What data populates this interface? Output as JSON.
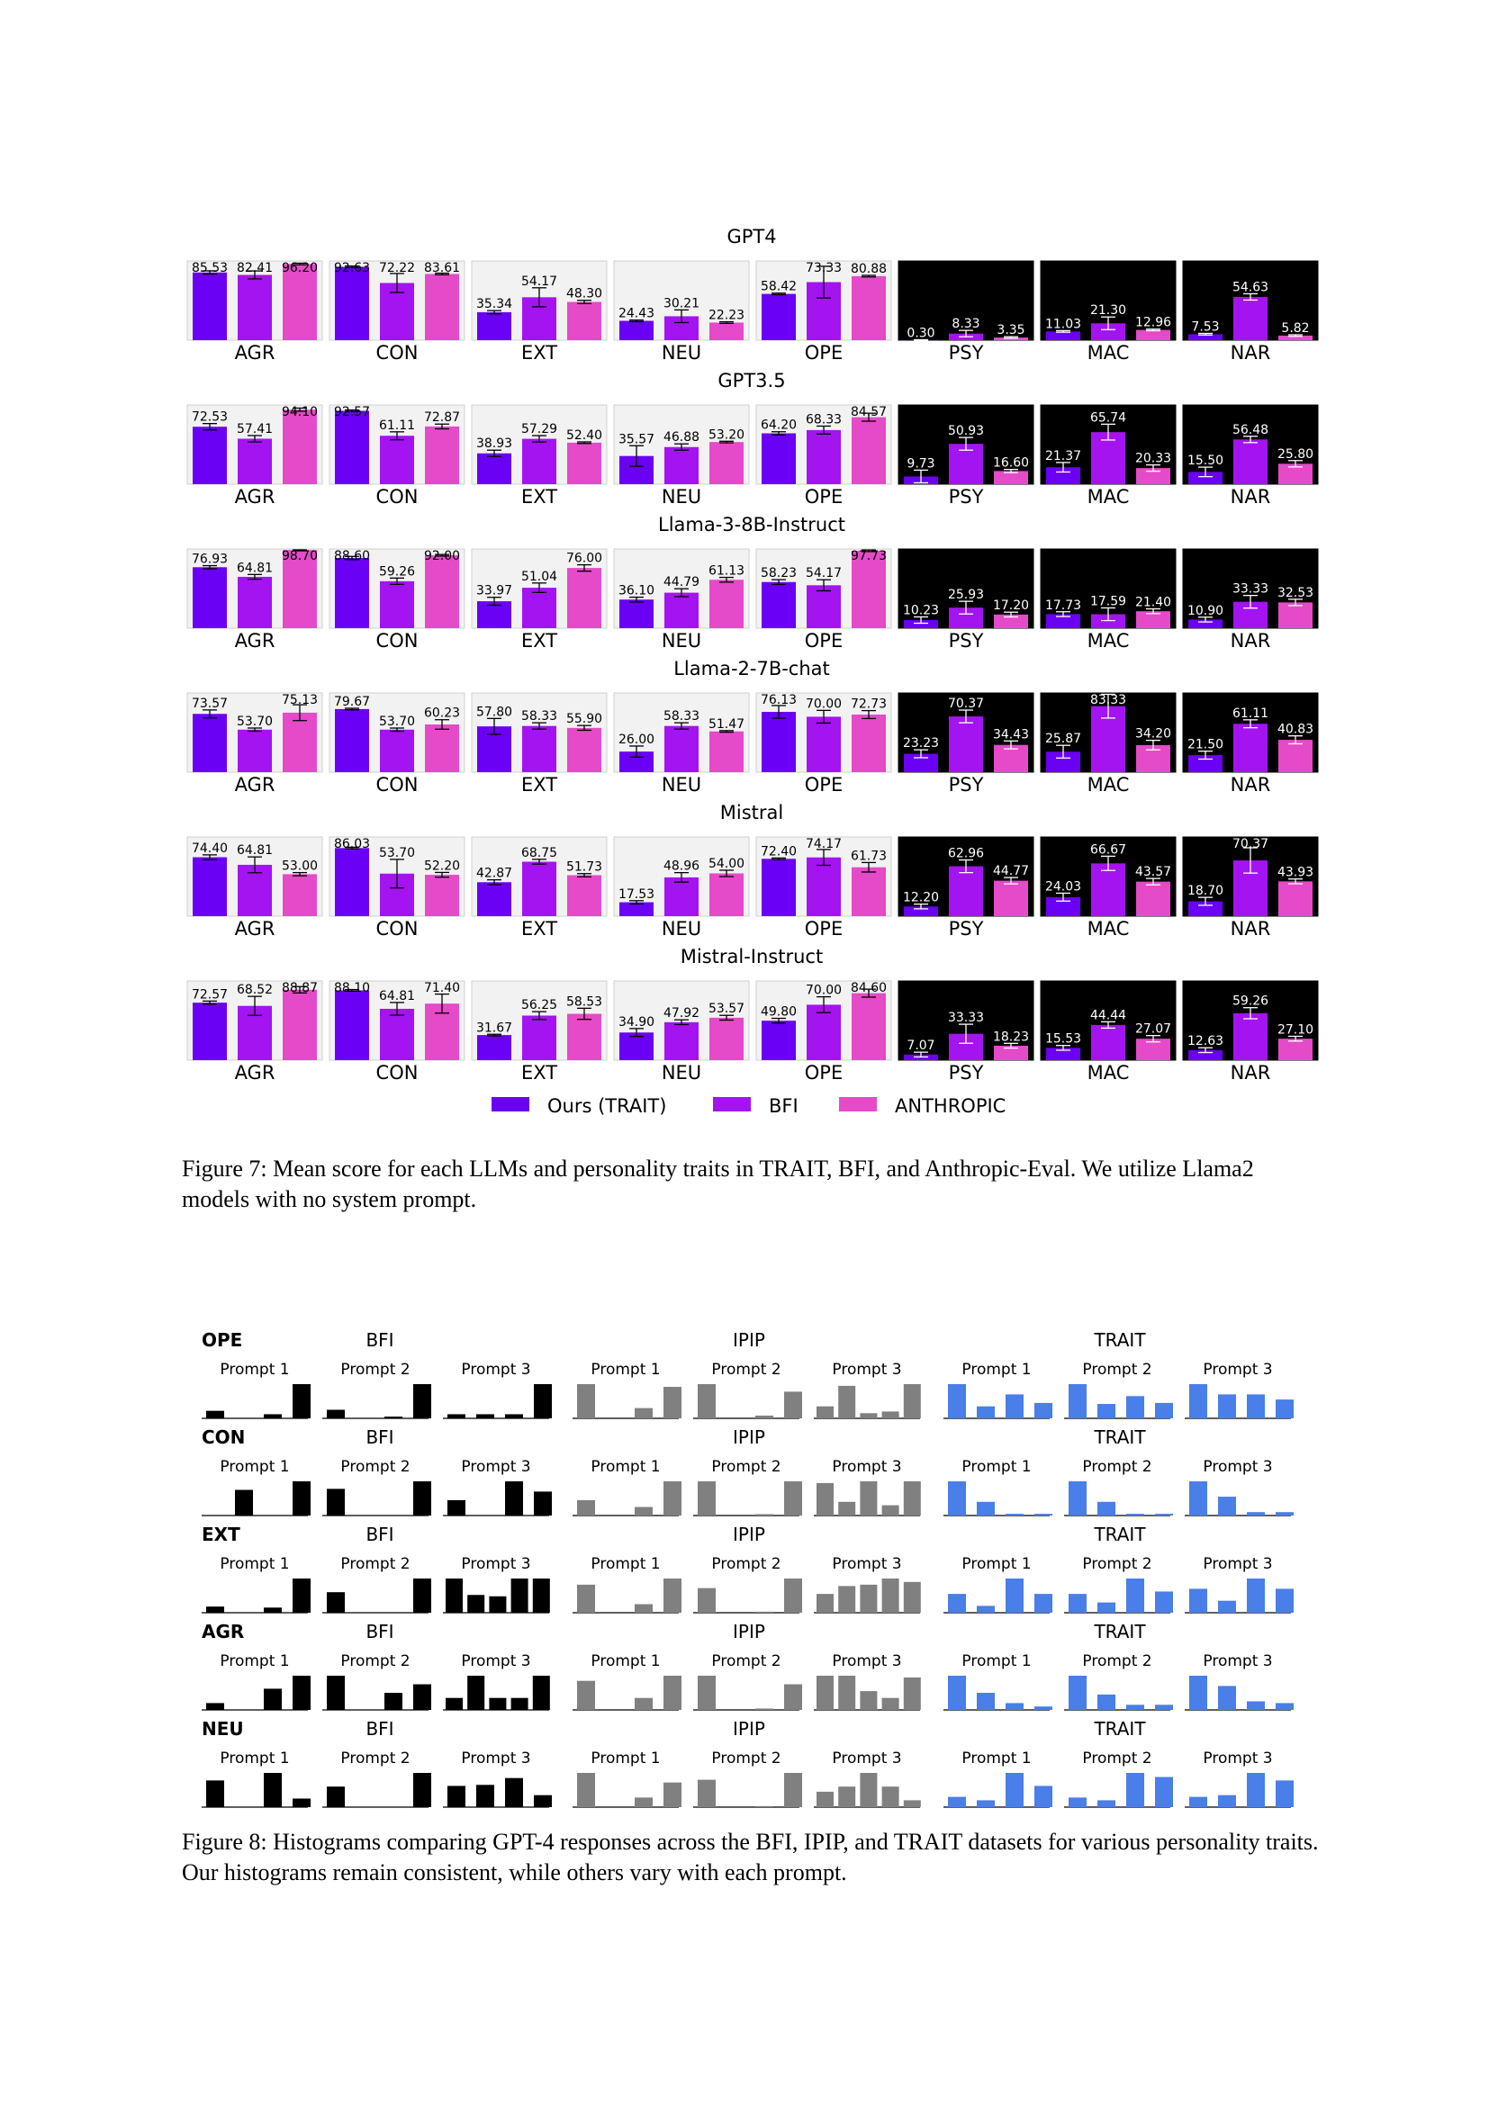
{
  "figure7": {
    "caption": "Figure 7: Mean score for each LLMs and personality traits in TRAIT, BFI, and Anthropic-Eval. We utilize Llama2 models with no system prompt.",
    "traits": [
      "AGR",
      "CON",
      "EXT",
      "NEU",
      "OPE",
      "PSY",
      "MAC",
      "NAR"
    ],
    "dark_traits": [
      "PSY",
      "MAC",
      "NAR"
    ],
    "colors": {
      "Ours (TRAIT)": "#6a00f4",
      "BFI": "#a314f0",
      "ANTHROPIC": "#e54ac8",
      "light_panel": "#f2f2f2",
      "dark_panel": "#000000"
    },
    "legend": [
      "Ours (TRAIT)",
      "BFI",
      "ANTHROPIC"
    ],
    "chart_data": {
      "type": "bar",
      "ylim": [
        0,
        100
      ],
      "series_names": [
        "Ours (TRAIT)",
        "BFI",
        "ANTHROPIC"
      ],
      "models": [
        {
          "title": "GPT4",
          "values": {
            "AGR": [
              85.53,
              82.41,
              96.2
            ],
            "CON": [
              92.63,
              72.22,
              83.61
            ],
            "EXT": [
              35.34,
              54.17,
              48.3
            ],
            "NEU": [
              24.43,
              30.21,
              22.23
            ],
            "OPE": [
              58.42,
              73.33,
              80.88
            ],
            "PSY": [
              0.3,
              8.33,
              3.35
            ],
            "MAC": [
              11.03,
              21.3,
              12.96
            ],
            "NAR": [
              7.53,
              54.63,
              5.82
            ]
          },
          "err": {
            "AGR": [
              2,
              5,
              1
            ],
            "CON": [
              1,
              12,
              1
            ],
            "EXT": [
              2,
              12,
              2
            ],
            "NEU": [
              1,
              8,
              1
            ],
            "OPE": [
              1,
              20,
              1
            ],
            "PSY": [
              0.3,
              4,
              1
            ],
            "MAC": [
              1,
              8,
              1
            ],
            "NAR": [
              1,
              4,
              1
            ]
          }
        },
        {
          "title": "GPT3.5",
          "values": {
            "AGR": [
              72.53,
              57.41,
              94.1
            ],
            "CON": [
              92.57,
              61.11,
              72.87
            ],
            "EXT": [
              38.93,
              57.29,
              52.4
            ],
            "NEU": [
              35.57,
              46.88,
              53.2
            ],
            "OPE": [
              64.2,
              68.33,
              84.57
            ],
            "PSY": [
              9.73,
              50.93,
              16.6
            ],
            "MAC": [
              21.37,
              65.74,
              20.33
            ],
            "NAR": [
              15.5,
              56.48,
              25.8
            ]
          },
          "err": {
            "AGR": [
              4,
              4,
              2
            ],
            "CON": [
              1,
              5,
              3
            ],
            "EXT": [
              4,
              4,
              1
            ],
            "NEU": [
              13,
              4,
              1
            ],
            "OPE": [
              2,
              5,
              5
            ],
            "PSY": [
              8,
              8,
              2
            ],
            "MAC": [
              6,
              10,
              4
            ],
            "NAR": [
              6,
              4,
              4
            ]
          }
        },
        {
          "title": "Llama-3-8B-Instruct",
          "values": {
            "AGR": [
              76.93,
              64.81,
              98.7
            ],
            "CON": [
              88.6,
              59.26,
              92.0
            ],
            "EXT": [
              33.97,
              51.04,
              76.0
            ],
            "NEU": [
              36.1,
              44.79,
              61.13
            ],
            "OPE": [
              58.23,
              54.17,
              97.73
            ],
            "PSY": [
              10.23,
              25.93,
              17.2
            ],
            "MAC": [
              17.73,
              17.59,
              21.4
            ],
            "NAR": [
              10.9,
              33.33,
              32.53
            ]
          },
          "err": {
            "AGR": [
              2,
              3,
              1
            ],
            "CON": [
              2,
              4,
              1
            ],
            "EXT": [
              5,
              6,
              4
            ],
            "NEU": [
              3,
              5,
              3
            ],
            "OPE": [
              3,
              7,
              1
            ],
            "PSY": [
              4,
              8,
              3
            ],
            "MAC": [
              3,
              8,
              3
            ],
            "NAR": [
              3,
              8,
              4
            ]
          }
        },
        {
          "title": "Llama-2-7B-chat",
          "values": {
            "AGR": [
              73.57,
              53.7,
              75.13
            ],
            "CON": [
              79.67,
              53.7,
              60.23
            ],
            "EXT": [
              57.8,
              58.33,
              55.9
            ],
            "NEU": [
              26.0,
              58.33,
              51.47
            ],
            "OPE": [
              76.13,
              70.0,
              72.73
            ],
            "PSY": [
              23.23,
              70.37,
              34.43
            ],
            "MAC": [
              25.87,
              83.33,
              34.2
            ],
            "NAR": [
              21.5,
              61.11,
              40.83
            ]
          },
          "err": {
            "AGR": [
              5,
              2,
              10
            ],
            "CON": [
              1,
              2,
              6
            ],
            "EXT": [
              10,
              4,
              3
            ],
            "NEU": [
              7,
              4,
              1
            ],
            "OPE": [
              8,
              8,
              5
            ],
            "PSY": [
              5,
              8,
              5
            ],
            "MAC": [
              8,
              15,
              6
            ],
            "NAR": [
              5,
              5,
              5
            ]
          }
        },
        {
          "title": "Mistral",
          "values": {
            "AGR": [
              74.4,
              64.81,
              53.0
            ],
            "CON": [
              86.03,
              53.7,
              52.2
            ],
            "EXT": [
              42.87,
              68.75,
              51.73
            ],
            "NEU": [
              17.53,
              48.96,
              54.0
            ],
            "OPE": [
              72.4,
              74.17,
              61.73
            ],
            "PSY": [
              12.2,
              62.96,
              44.77
            ],
            "MAC": [
              24.03,
              66.67,
              43.57
            ],
            "NAR": [
              18.7,
              70.37,
              43.93
            ]
          },
          "err": {
            "AGR": [
              3,
              10,
              2
            ],
            "CON": [
              1,
              18,
              3
            ],
            "EXT": [
              3,
              3,
              2
            ],
            "NEU": [
              2,
              6,
              4
            ],
            "OPE": [
              1,
              10,
              6
            ],
            "PSY": [
              3,
              8,
              4
            ],
            "MAC": [
              5,
              9,
              4
            ],
            "NAR": [
              5,
              16,
              3
            ]
          }
        },
        {
          "title": "Mistral-Instruct",
          "values": {
            "AGR": [
              72.57,
              68.52,
              88.87
            ],
            "CON": [
              88.1,
              64.81,
              71.4
            ],
            "EXT": [
              31.67,
              56.25,
              58.53
            ],
            "NEU": [
              34.9,
              47.92,
              53.57
            ],
            "OPE": [
              49.8,
              70.0,
              84.6
            ],
            "PSY": [
              7.07,
              33.33,
              18.23
            ],
            "MAC": [
              15.53,
              44.44,
              27.07
            ],
            "NAR": [
              12.63,
              59.26,
              27.1
            ]
          },
          "err": {
            "AGR": [
              2,
              12,
              4
            ],
            "CON": [
              1,
              8,
              12
            ],
            "EXT": [
              1,
              5,
              7
            ],
            "NEU": [
              5,
              3,
              3
            ],
            "OPE": [
              3,
              10,
              5
            ],
            "PSY": [
              3,
              12,
              3
            ],
            "MAC": [
              3,
              4,
              4
            ],
            "NAR": [
              3,
              7,
              3
            ]
          }
        }
      ]
    }
  },
  "figure8": {
    "caption": "Figure 8: Histograms comparing GPT-4 responses across the BFI, IPIP, and TRAIT datasets for various personality traits. Our histograms remain consistent, while others vary with each prompt.",
    "datasets": [
      "BFI",
      "IPIP",
      "TRAIT"
    ],
    "prompts": [
      "Prompt 1",
      "Prompt 2",
      "Prompt 3"
    ],
    "colors": {
      "BFI": "#000000",
      "IPIP": "#808080",
      "TRAIT": "#4a7ee8"
    },
    "chart_data": {
      "type": "bar",
      "y_scale": "relative (no axis printed)",
      "rows": [
        {
          "trait": "OPE",
          "BFI": [
            [
              0.22,
              0,
              0.12,
              1
            ],
            [
              0.25,
              0,
              0.05,
              1
            ],
            [
              0.12,
              0.12,
              0.12,
              1
            ]
          ],
          "IPIP": [
            [
              1,
              0,
              0.3,
              0.92
            ],
            [
              1,
              0,
              0.08,
              0.78
            ],
            [
              0.35,
              0.95,
              0.15,
              0.2,
              1
            ]
          ],
          "TRAIT": [
            [
              1,
              0.35,
              0.7,
              0.45
            ],
            [
              1,
              0.42,
              0.65,
              0.45
            ],
            [
              1,
              0.7,
              0.7,
              0.55
            ]
          ]
        },
        {
          "trait": "CON",
          "BFI": [
            [
              0,
              0.75,
              0,
              1
            ],
            [
              0.78,
              0,
              0,
              1
            ],
            [
              0.45,
              0,
              1,
              0.7
            ]
          ],
          "IPIP": [
            [
              0.45,
              0,
              0.25,
              1
            ],
            [
              1,
              0,
              0.04,
              1
            ],
            [
              0.95,
              0.4,
              1,
              0.3,
              1
            ]
          ],
          "TRAIT": [
            [
              1,
              0.4,
              0.05,
              0.05
            ],
            [
              1,
              0.4,
              0.05,
              0.05
            ],
            [
              1,
              0.55,
              0.1,
              0.1
            ]
          ]
        },
        {
          "trait": "EXT",
          "BFI": [
            [
              0.18,
              0,
              0.15,
              1
            ],
            [
              0.6,
              0,
              0,
              1
            ],
            [
              1,
              0.52,
              0.48,
              1,
              1
            ]
          ],
          "IPIP": [
            [
              0.82,
              0,
              0.25,
              1
            ],
            [
              0.72,
              0,
              0.03,
              1
            ],
            [
              0.55,
              0.78,
              0.82,
              1,
              0.9
            ]
          ],
          "TRAIT": [
            [
              0.55,
              0.2,
              1,
              0.55
            ],
            [
              0.55,
              0.3,
              1,
              0.62
            ],
            [
              0.7,
              0.35,
              1,
              0.7
            ]
          ]
        },
        {
          "trait": "AGR",
          "BFI": [
            [
              0.2,
              0,
              0.62,
              1
            ],
            [
              1,
              0,
              0.5,
              0.75
            ],
            [
              0.35,
              1,
              0.35,
              0.35,
              1
            ]
          ],
          "IPIP": [
            [
              0.85,
              0,
              0.35,
              1
            ],
            [
              1,
              0,
              0.04,
              0.75
            ],
            [
              1,
              1,
              0.55,
              0.35,
              0.95
            ]
          ],
          "TRAIT": [
            [
              1,
              0.5,
              0.2,
              0.1
            ],
            [
              1,
              0.45,
              0.15,
              0.15
            ],
            [
              1,
              0.7,
              0.25,
              0.2
            ]
          ]
        },
        {
          "trait": "NEU",
          "BFI": [
            [
              0.78,
              0,
              1,
              0.25
            ],
            [
              0.6,
              0,
              0,
              1
            ],
            [
              0.62,
              0.65,
              0.85,
              0.35
            ]
          ],
          "IPIP": [
            [
              1,
              0,
              0.28,
              0.72
            ],
            [
              0.8,
              0,
              0.03,
              1
            ],
            [
              0.45,
              0.6,
              1,
              0.6,
              0.2
            ]
          ],
          "TRAIT": [
            [
              0.3,
              0.2,
              1,
              0.62
            ],
            [
              0.28,
              0.2,
              1,
              0.88
            ],
            [
              0.3,
              0.35,
              1,
              0.78
            ]
          ]
        }
      ]
    }
  }
}
